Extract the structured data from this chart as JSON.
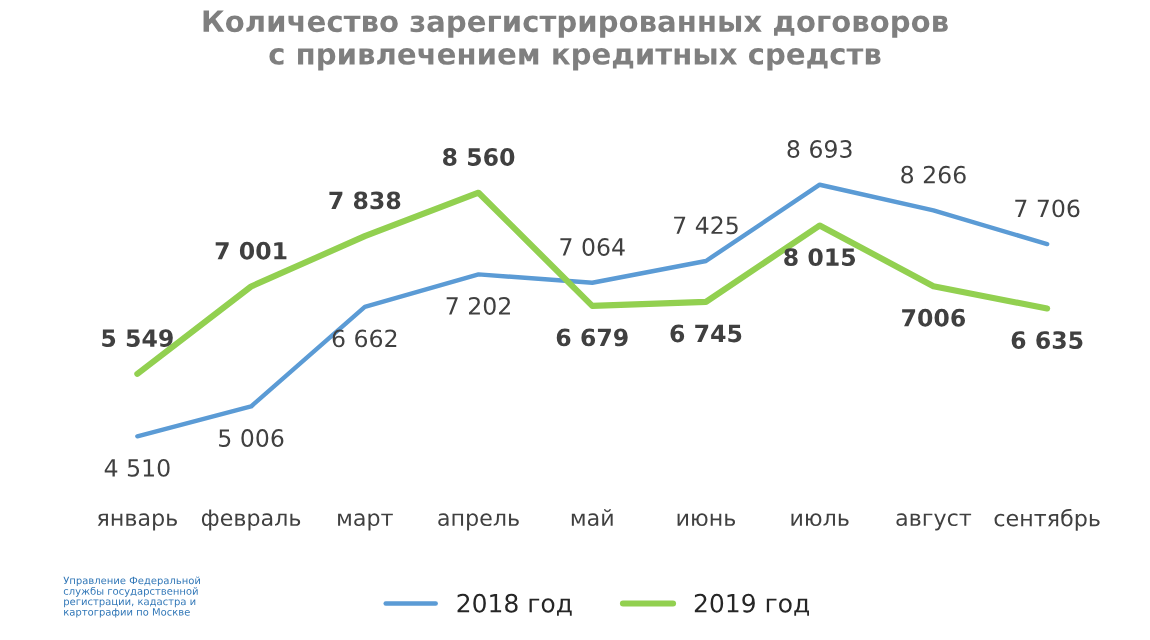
{
  "chart_data": {
    "type": "line",
    "title": "Количество зарегистрированных договоров\nс привлечением кредитных средств",
    "categories": [
      "январь",
      "февраль",
      "март",
      "апрель",
      "май",
      "июнь",
      "июль",
      "август",
      "сентябрь"
    ],
    "series": [
      {
        "name": "2018 год",
        "color": "#5b9bd5",
        "values": [
          4510,
          5006,
          6662,
          7202,
          7064,
          7425,
          8693,
          8266,
          7706
        ],
        "value_labels": [
          "4 510",
          "5 006",
          "6 662",
          "7 202",
          "7 064",
          "7 425",
          "8 693",
          "8 266",
          "7 706"
        ]
      },
      {
        "name": "2019 год",
        "color": "#92d050",
        "values": [
          5549,
          7001,
          7838,
          8560,
          6679,
          6745,
          8015,
          7006,
          6635
        ],
        "value_labels": [
          "5 549",
          "7 001",
          "7 838",
          "8 560",
          "6 679",
          "6 745",
          "8 015",
          "7006",
          "6 635"
        ]
      }
    ],
    "legend": "bottom",
    "grid": false,
    "marker": "none",
    "line_style": "solid",
    "annotations": [
      "Управление Федеральной\nслужбы государственной\nрегистрации, кадастра и\nкартографии по Москве"
    ]
  }
}
